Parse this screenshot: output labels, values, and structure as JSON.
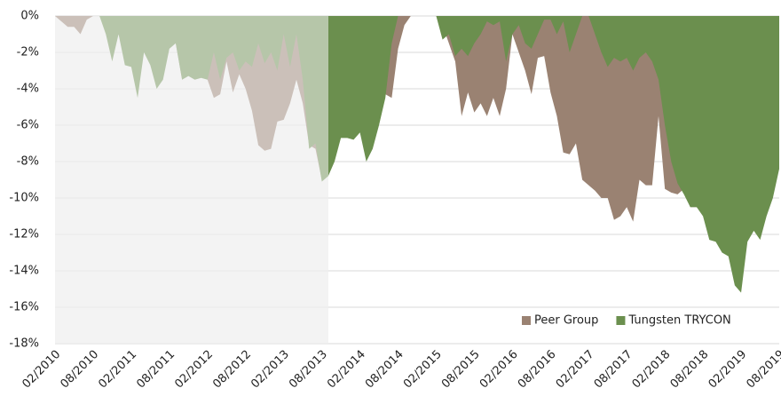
{
  "chart_data": {
    "type": "area",
    "x": [
      "02/2010",
      null,
      null,
      null,
      null,
      null,
      "08/2010",
      null,
      null,
      null,
      null,
      null,
      "02/2011",
      null,
      null,
      null,
      null,
      null,
      "08/2011",
      null,
      null,
      null,
      null,
      null,
      "02/2012",
      null,
      null,
      null,
      null,
      null,
      "08/2012",
      null,
      null,
      null,
      null,
      null,
      "02/2013",
      null,
      null,
      null,
      null,
      null,
      "08/2013",
      null,
      null,
      null,
      null,
      null,
      "02/2014",
      null,
      null,
      null,
      null,
      null,
      "08/2014",
      null,
      null,
      null,
      null,
      null,
      "02/2015",
      null,
      null,
      null,
      null,
      null,
      "08/2015",
      null,
      null,
      null,
      null,
      null,
      "02/2016",
      null,
      null,
      null,
      null,
      null,
      "08/2016",
      null,
      null,
      null,
      null,
      null,
      "02/2017",
      null,
      null,
      null,
      null,
      null,
      "08/2017",
      null,
      null,
      null,
      null,
      null,
      "02/2018",
      null,
      null,
      null,
      null,
      null,
      "08/2018",
      null,
      null,
      null,
      null,
      null,
      "02/2019",
      null,
      null,
      null,
      null,
      null,
      "08/2019"
    ],
    "series": [
      {
        "name": "Peer Group",
        "color": "#9a8272",
        "values": [
          0,
          -0.3,
          -0.6,
          -0.6,
          -1,
          -0.2,
          0,
          0,
          -0.5,
          -1.5,
          -1,
          -2,
          -2.5,
          -3,
          -1.5,
          -2,
          -1.5,
          -2,
          -1.6,
          -1.5,
          -3.5,
          -3.2,
          -3.4,
          -3.3,
          -3.5,
          -4.5,
          -4.3,
          -2.5,
          -4.2,
          -3.2,
          -4,
          -5.2,
          -7.1,
          -7.4,
          -7.3,
          -5.8,
          -5.7,
          -4.8,
          -3.5,
          -4.8,
          -7.1,
          -7.3,
          -9,
          -8.5,
          -7.8,
          -6.5,
          -6.5,
          -6.5,
          -6.2,
          -7.5,
          -6.5,
          -5.5,
          -4.3,
          -4.5,
          -1.8,
          -0.5,
          0,
          0,
          0,
          0,
          0,
          -0.5,
          -1.5,
          -2.5,
          -5.5,
          -4.2,
          -5.3,
          -4.8,
          -5.5,
          -4.5,
          -5.5,
          -4,
          -1,
          -2,
          -3,
          -4.3,
          -2.3,
          -2.2,
          -4.2,
          -5.5,
          -7.5,
          -7.6,
          -7,
          -9,
          -9.3,
          -9.6,
          -10,
          -10,
          -11.2,
          -11,
          -10.5,
          -11.3,
          -9,
          -9.3,
          -9.3,
          -5.5,
          -9.5,
          -9.7,
          -9.8,
          -9.5,
          -10.5,
          -10.5,
          -10.8,
          -11,
          -11.2,
          -11.5,
          -11.5,
          -12,
          -12.5,
          -11,
          -10.5,
          -10.8,
          -10,
          -9,
          -8
        ]
      },
      {
        "name": "Tungsten TRYCON",
        "color": "#6b8f4e",
        "values": [
          0,
          0,
          0,
          0,
          0,
          0,
          0,
          0,
          -1,
          -2.5,
          -1,
          -2.7,
          -2.8,
          -4.5,
          -2,
          -2.7,
          -4,
          -3.5,
          -1.8,
          -1.5,
          -3.5,
          -3.3,
          -3.5,
          -3.4,
          -3.5,
          -2,
          -3.5,
          -2.3,
          -2,
          -3,
          -2.5,
          -2.8,
          -1.5,
          -2.6,
          -2,
          -3,
          -1,
          -2.8,
          -1,
          -3.5,
          -7.3,
          -7,
          -9.1,
          -8.8,
          -8,
          -6.7,
          -6.7,
          -6.8,
          -6.4,
          -8,
          -7.3,
          -6,
          -4.5,
          -1.5,
          0,
          0,
          0,
          0,
          0,
          0,
          0,
          -1.3,
          -1,
          -2.2,
          -1.8,
          -2.2,
          -1.5,
          -1,
          -0.3,
          -0.5,
          -0.3,
          -2.5,
          -1,
          -0.5,
          -1.5,
          -1.8,
          -1,
          -0.2,
          -0.2,
          -1,
          -0.3,
          -2,
          -1,
          0,
          0,
          -1,
          -2,
          -2.8,
          -2.3,
          -2.5,
          -2.3,
          -3,
          -2.3,
          -2,
          -2.5,
          -3.5,
          -6,
          -8,
          -9.2,
          -9.8,
          -10.5,
          -10.5,
          -11,
          -12.3,
          -12.4,
          -13,
          -13.2,
          -14.8,
          -15.2,
          -12.4,
          -11.8,
          -12.3,
          -11,
          -10,
          -8.4
        ]
      }
    ],
    "ylim": [
      -18,
      0
    ],
    "yticks": [
      {
        "value": 0,
        "label": "0%"
      },
      {
        "value": -2,
        "label": "-2%"
      },
      {
        "value": -4,
        "label": "-4%"
      },
      {
        "value": -6,
        "label": "-6%"
      },
      {
        "value": -8,
        "label": "-8%"
      },
      {
        "value": -10,
        "label": "-10%"
      },
      {
        "value": -12,
        "label": "-12%"
      },
      {
        "value": -14,
        "label": "-14%"
      },
      {
        "value": -16,
        "label": "-16%"
      },
      {
        "value": -18,
        "label": "-18%"
      }
    ],
    "grid": true,
    "legend": "lower right"
  }
}
